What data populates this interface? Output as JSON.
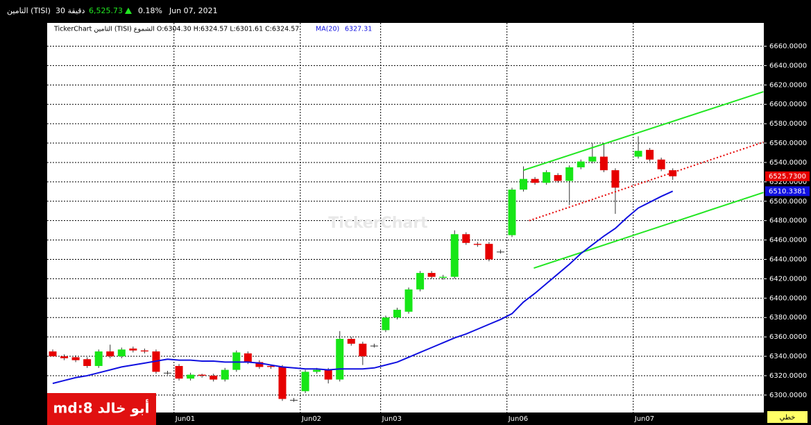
{
  "header": {
    "symbol": "التامين (TISI)",
    "interval": "30 دقيقة",
    "price": "6,525.73",
    "change": "0.18%",
    "date": "Jun 07, 2021"
  },
  "chart_data": {
    "type": "candlestick",
    "legend_text": "TickerChart التامين (TISI) الشموع O:6304.30 H:6324.57 L:6301.61 C:6324.57",
    "watermark": "TickerChart",
    "categories": [
      null,
      null,
      null,
      null,
      null,
      null,
      null,
      null,
      null,
      null,
      null,
      "Jun01",
      null,
      null,
      null,
      null,
      null,
      null,
      null,
      null,
      null,
      null,
      "Jun02",
      null,
      null,
      null,
      null,
      null,
      null,
      "Jun03",
      null,
      null,
      null,
      null,
      null,
      null,
      null,
      null,
      null,
      null,
      "Jun06",
      null,
      null,
      null,
      null,
      null,
      null,
      null,
      null,
      null,
      null,
      "Jun07",
      null,
      null,
      null
    ],
    "open": [
      6345,
      6340,
      6339,
      6337,
      6330,
      6345,
      6340,
      6348,
      6346,
      6345,
      6323,
      6330,
      6317,
      6321,
      6320,
      6316,
      6326,
      6343,
      6334,
      6330,
      6329,
      6295,
      6304,
      6324,
      6326,
      6316,
      6358,
      6353,
      6351,
      6367,
      6380,
      6386,
      6409,
      6426,
      6421,
      6422,
      6466,
      6456,
      6456,
      6448,
      6465,
      6512,
      6523,
      6519,
      6527,
      6521,
      6535,
      6541,
      6546,
      6532,
      null,
      6546,
      6553,
      6543,
      6532
    ],
    "high": [
      6347,
      6342,
      6341,
      6339,
      6347,
      6352,
      6349,
      6350,
      6348,
      6347,
      6325,
      6332,
      6323,
      6322,
      6322,
      6328,
      6346,
      6345,
      6336,
      6331,
      6331,
      6297,
      6326,
      6328,
      6328,
      6366,
      6360,
      6355,
      6353,
      6382,
      6390,
      6411,
      6428,
      6428,
      6424,
      6470,
      6468,
      6458,
      6458,
      6450,
      6514,
      6536,
      6525,
      6532,
      6529,
      6537,
      6543,
      6560,
      6560,
      6534,
      null,
      6567,
      6555,
      6545,
      6534
    ],
    "low": [
      6343,
      6336,
      6334,
      6328,
      6328,
      6338,
      6338,
      6344,
      6343,
      6322,
      6321,
      6315,
      6315,
      6318,
      6314,
      6314,
      6324,
      6332,
      6327,
      6327,
      6294,
      6293,
      6302,
      6322,
      6312,
      6314,
      6351,
      6331,
      6349,
      6365,
      6378,
      6384,
      6407,
      6420,
      6419,
      6420,
      6455,
      6453,
      6438,
      6446,
      6463,
      6510,
      6517,
      6517,
      6519,
      6496,
      6533,
      6539,
      6530,
      6487,
      null,
      6544,
      6541,
      6531,
      6522
    ],
    "close": [
      6340,
      6338,
      6336,
      6330,
      6345,
      6340,
      6347,
      6346,
      6345,
      6324,
      6323,
      6317,
      6321,
      6320,
      6316,
      6326,
      6344,
      6334,
      6329,
      6329,
      6296,
      6295,
      6324,
      6326,
      6316,
      6358,
      6353,
      6340,
      6351,
      6380,
      6388,
      6409,
      6426,
      6422,
      6422,
      6466,
      6457,
      6455,
      6440,
      6448,
      6512,
      6523,
      6519,
      6530,
      6521,
      6535,
      6541,
      6546,
      6532,
      6514,
      null,
      6552,
      6543,
      6533,
      6525.73
    ],
    "up_color": "#17e617",
    "down_color": "#e60000",
    "ma": {
      "name": "MA(20)",
      "value_label": "6327.31",
      "color": "#1010e0",
      "values": [
        6312,
        6315,
        6318,
        6320,
        6323,
        6326,
        6329,
        6331,
        6333,
        6335,
        6337,
        6336,
        6336,
        6335,
        6335,
        6334,
        6334,
        6334,
        6333,
        6331,
        6329,
        6328,
        6327,
        6327,
        6326,
        6327,
        6327,
        6327,
        6328,
        6331,
        6334,
        6339,
        6344,
        6349,
        6354,
        6359,
        6363,
        6368,
        6373,
        6378,
        6384,
        6396,
        6405,
        6415,
        6425,
        6435,
        6446,
        6455,
        6464,
        6472,
        6483,
        6493,
        6499,
        6505,
        6510.34
      ]
    },
    "trendlines": [
      {
        "color": "#22e622",
        "dash": false,
        "x": [
          41,
          61.9
        ],
        "y": [
          6532,
          6613
        ]
      },
      {
        "color": "#22e622",
        "dash": false,
        "x": [
          41.9,
          61.9
        ],
        "y": [
          6431,
          6509
        ]
      },
      {
        "color": "#e60000",
        "dash": true,
        "x": [
          41.5,
          61.9
        ],
        "y": [
          6480,
          6561
        ]
      }
    ],
    "last_price": {
      "value": 6525.73,
      "label": "6525.7300",
      "color": "#e60000"
    },
    "ma_last": {
      "value": 6510.3381,
      "label": "6510.3381",
      "color": "#1010e0"
    },
    "ylim": [
      6282,
      6684
    ],
    "yticks": [
      {
        "value": 6300,
        "label": "6300.0000"
      },
      {
        "value": 6320,
        "label": "6320.0000"
      },
      {
        "value": 6340,
        "label": "6340.0000"
      },
      {
        "value": 6360,
        "label": "6360.0000"
      },
      {
        "value": 6380,
        "label": "6380.0000"
      },
      {
        "value": 6400,
        "label": "6400.0000"
      },
      {
        "value": 6420,
        "label": "6420.0000"
      },
      {
        "value": 6440,
        "label": "6440.0000"
      },
      {
        "value": 6460,
        "label": "6460.0000"
      },
      {
        "value": 6480,
        "label": "6480.0000"
      },
      {
        "value": 6500,
        "label": "6500.0000"
      },
      {
        "value": 6520,
        "label": "6520.0000"
      },
      {
        "value": 6540,
        "label": "6540.0000"
      },
      {
        "value": 6560,
        "label": "6560.0000"
      },
      {
        "value": 6580,
        "label": "6580.0000"
      },
      {
        "value": 6600,
        "label": "6600.0000"
      },
      {
        "value": 6620,
        "label": "6620.0000"
      },
      {
        "value": 6640,
        "label": "6640.0000"
      },
      {
        "value": 6660,
        "label": "6660.0000"
      }
    ],
    "grid": true
  },
  "footer": {
    "user": "md:8 أبو خالد",
    "mode": "خطي"
  }
}
